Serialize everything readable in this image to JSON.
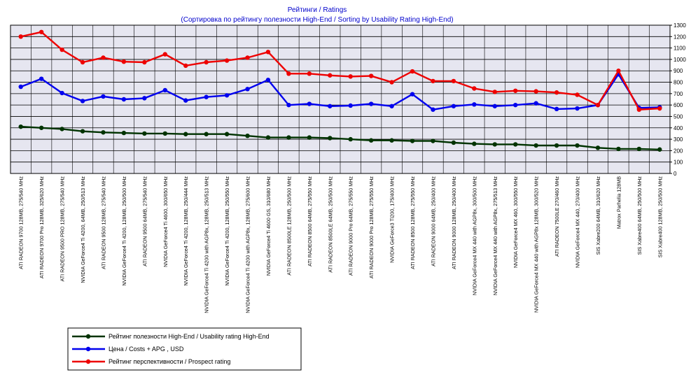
{
  "chart_data": {
    "type": "line",
    "title": "Рейтинги / Ratings",
    "subtitle": "(Сортировка по рейтингу полезности High-End / Sorting by Usability Rating High-End)",
    "xlabel": "",
    "ylabel": "",
    "ylim": [
      0,
      1300
    ],
    "yticks": [
      0,
      100,
      200,
      300,
      400,
      500,
      600,
      700,
      800,
      900,
      1000,
      1100,
      1200,
      1300
    ],
    "grid": true,
    "legend_position": "bottom-left",
    "categories": [
      "ATI RADEON 9700 128MB, 275/540 MHz",
      "ATI RADEON 9700 Pro 128MB, 325/620 MHz",
      "ATI RADEON 9500 PRO 128MB, 275/540 MHz",
      "NVIDIA GeForce4 Ti 4200, 64MB, 250/513 MHz",
      "ATI RADEON 9500 128MB, 275/540 MHz",
      "NVIDIA GeForce4 Ti 4200, 128MB, 250/500 MHz",
      "ATI RADEON 9500 64MB, 275/540 MHz",
      "NVIDIA GeForce4 Ti 4600, 300/650 MHz",
      "NVIDIA GeForce4 Ti 4200, 128MB, 250/444 MHz",
      "NVIDIA GeForce4 Ti 4200 with AGP8x, 128MB, 250/513 MHz",
      "NVIDIA GeForce4 Ti 4200, 128MB, 250/550 MHz",
      "NVIDIA GeForce4 Ti 4200 with AGP8x, 128MB, 275/600 MHz",
      "NVIDIA GeForce4 Ti 4600 GS, 310/680 MHz",
      "ATI RADEON 8500LE 128MB, 250/500 MHz",
      "ATI RADEON 8500 64MB, 275/550 MHz",
      "ATI RADEON 8500LE 64MB, 250/500 MHz",
      "ATI RADEON 9000 Pro 64MB, 275/550 MHz",
      "ATI RADEON 9000 Pro 128MB, 275/550 MHz",
      "NVIDIA GeForce3 Ti200, 175/400 MHz",
      "ATI RADEON 8500 128MB, 275/550 MHz",
      "ATI RADEON 9000 64MB, 250/400 MHz",
      "ATI RADEON 9000 128MB, 250/400 MHz",
      "NVIDIA GeForce4 MX 440 with AGP8x, 300/500 MHz",
      "NVIDIA GeForce4 MX 440 with AGP8x, 275/513 MHz",
      "NVIDIA GeForce4 MX 460, 300/550 MHz",
      "NVIDIA GeForce4 MX 440 with AGP8x 128MB, 300/520 MHz",
      "ATI RADEON 7500LE 270/460 MHz",
      "NVIDIA GeForce4 MX 440, 270/400 MHz",
      "SIS Xabre200 64MB, 310/620 MHz",
      "Matrox Parhelia 128MB",
      "SIS Xabre400 64MB, 250/500 MHz",
      "SIS Xabre400 128MB, 250/500 MHz"
    ],
    "series": [
      {
        "name": "Рейтинг полезности High-End / Usability rating High-End",
        "color": "#003300",
        "values": [
          410,
          400,
          390,
          370,
          360,
          355,
          350,
          350,
          345,
          345,
          345,
          330,
          315,
          315,
          315,
          310,
          300,
          290,
          290,
          285,
          285,
          270,
          260,
          255,
          255,
          245,
          245,
          245,
          225,
          215,
          215,
          210
        ]
      },
      {
        "name": "Цена / Costs + APG , USD",
        "color": "#0000ee",
        "values": [
          760,
          830,
          705,
          635,
          675,
          650,
          660,
          730,
          640,
          670,
          685,
          740,
          820,
          600,
          610,
          590,
          595,
          610,
          590,
          695,
          560,
          590,
          605,
          590,
          600,
          615,
          565,
          570,
          600,
          870,
          575,
          580
        ]
      },
      {
        "name": "Рейтинг перспективности / Prospect rating",
        "color": "#ee0000",
        "values": [
          1200,
          1240,
          1085,
          975,
          1015,
          980,
          975,
          1045,
          945,
          975,
          990,
          1015,
          1065,
          875,
          875,
          860,
          850,
          855,
          800,
          895,
          810,
          810,
          745,
          715,
          725,
          720,
          710,
          690,
          600,
          900,
          560,
          570
        ]
      }
    ]
  }
}
